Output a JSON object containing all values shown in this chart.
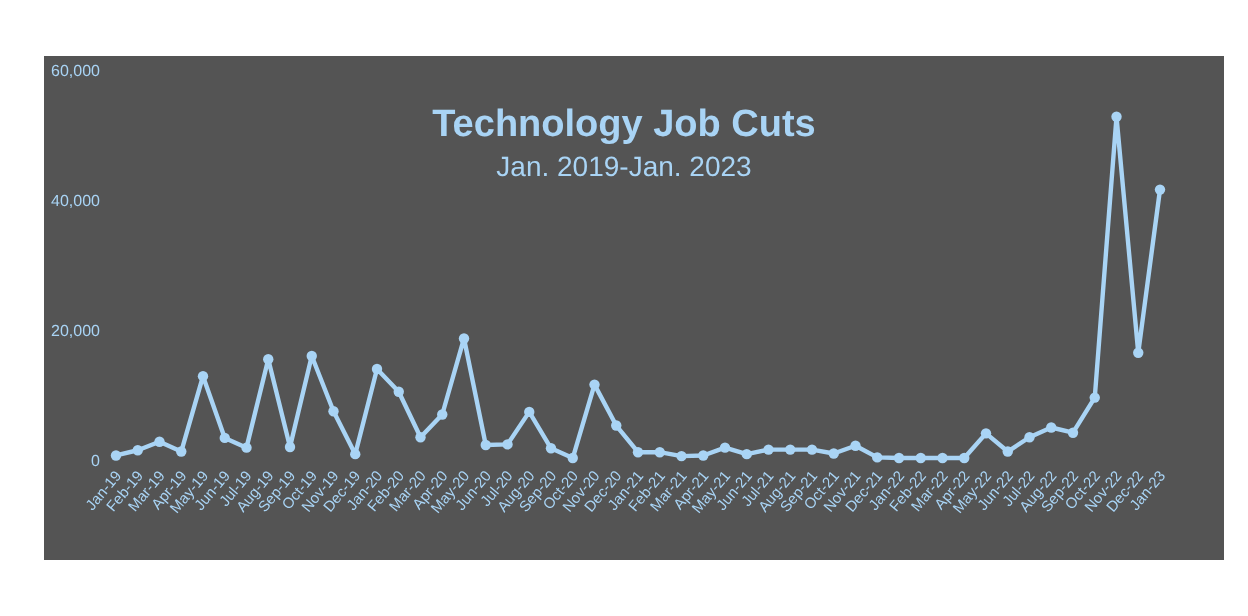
{
  "chart_data": {
    "type": "line",
    "title": "Technology Job Cuts",
    "subtitle": "Jan. 2019-Jan. 2023",
    "categories": [
      "Jan-19",
      "Feb-19",
      "Mar-19",
      "Apr-19",
      "May-19",
      "Jun-19",
      "Jul-19",
      "Aug-19",
      "Sep-19",
      "Oct-19",
      "Nov-19",
      "Dec-19",
      "Jan-20",
      "Feb-20",
      "Mar-20",
      "Apr-20",
      "May-20",
      "Jun-20",
      "Jul-20",
      "Aug-20",
      "Sep-20",
      "Oct-20",
      "Nov-20",
      "Dec-20",
      "Jan-21",
      "Feb-21",
      "Mar-21",
      "Apr-21",
      "May-21",
      "Jun-21",
      "Jul-21",
      "Aug-21",
      "Sep-21",
      "Oct-21",
      "Nov-21",
      "Dec-21",
      "Jan-22",
      "Feb-22",
      "Mar-22",
      "Apr-22",
      "May-22",
      "Jun-22",
      "Jul-22",
      "Aug-22",
      "Sep-22",
      "Oct-22",
      "Nov-22",
      "Dec-22",
      "Jan-23"
    ],
    "series": [
      {
        "color": "#a9d4f5",
        "values": [
          700,
          1500,
          2800,
          1300,
          12900,
          3400,
          1900,
          15500,
          2000,
          16000,
          7500,
          900,
          14000,
          10500,
          3500,
          7000,
          18700,
          2300,
          2400,
          7400,
          1800,
          300,
          11600,
          5300,
          1200,
          1200,
          600,
          700,
          1900,
          900,
          1600,
          1600,
          1600,
          1000,
          2200,
          400,
          300,
          300,
          300,
          300,
          4100,
          1300,
          3500,
          5000,
          4200,
          9600,
          52800,
          16500,
          41600
        ]
      }
    ],
    "ylim": [
      0,
      60000
    ],
    "yticks": [
      {
        "value": 0,
        "label": "0"
      },
      {
        "value": 20000,
        "label": "20,000"
      },
      {
        "value": 40000,
        "label": "40,000"
      },
      {
        "value": 60000,
        "label": "60,000"
      }
    ],
    "marker": "circle",
    "line_style": "solid"
  }
}
